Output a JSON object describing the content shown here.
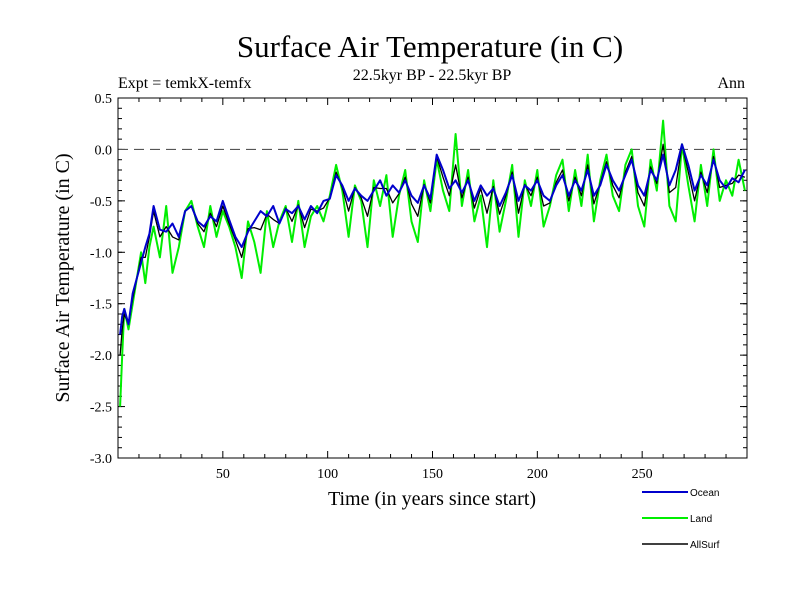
{
  "chart_data": {
    "type": "line",
    "title": "Surface Air Temperature (in C)",
    "subtitle": "22.5kyr BP - 22.5kyr BP",
    "left_label": "Expt = temkX-temfx",
    "right_label": "Ann",
    "xlabel": "Time (in years since start)",
    "ylabel": "Surface Air Temperature (in C)",
    "xlim": [
      0,
      300
    ],
    "ylim": [
      -3.0,
      0.5
    ],
    "x_ticks": [
      50,
      100,
      150,
      200,
      250
    ],
    "y_ticks": [
      -3.0,
      -2.5,
      -2.0,
      -1.5,
      -1.0,
      -0.5,
      0.0,
      0.5
    ],
    "y_tick_labels": [
      "-3.0",
      "-2.5",
      "-2.0",
      "-1.5",
      "-1.0",
      "-0.5",
      "0.0",
      "0.5"
    ],
    "reference_line": 0.0,
    "legend_position": "bottom-right",
    "series": [
      {
        "name": "Ocean",
        "color": "#0000cc",
        "x": [
          1,
          2,
          3,
          5,
          7,
          9,
          11,
          13,
          15,
          17,
          20,
          23,
          26,
          29,
          32,
          35,
          38,
          41,
          44,
          47,
          50,
          53,
          56,
          59,
          62,
          65,
          68,
          71,
          74,
          77,
          80,
          83,
          86,
          89,
          92,
          95,
          98,
          101,
          104,
          107,
          110,
          113,
          116,
          119,
          122,
          125,
          128,
          131,
          134,
          137,
          140,
          143,
          146,
          149,
          152,
          155,
          158,
          161,
          164,
          167,
          170,
          173,
          176,
          179,
          182,
          185,
          188,
          191,
          194,
          197,
          200,
          203,
          206,
          209,
          212,
          215,
          218,
          221,
          224,
          227,
          230,
          233,
          236,
          239,
          242,
          245,
          248,
          251,
          254,
          257,
          260,
          263,
          266,
          269,
          272,
          275,
          278,
          281,
          284,
          287,
          290,
          293,
          296,
          299
        ],
        "values": [
          -1.8,
          -1.62,
          -1.55,
          -1.7,
          -1.4,
          -1.25,
          -1.1,
          -0.95,
          -0.82,
          -0.55,
          -0.78,
          -0.8,
          -0.72,
          -0.85,
          -0.6,
          -0.55,
          -0.7,
          -0.75,
          -0.65,
          -0.7,
          -0.5,
          -0.68,
          -0.85,
          -0.95,
          -0.8,
          -0.7,
          -0.6,
          -0.65,
          -0.55,
          -0.72,
          -0.58,
          -0.62,
          -0.55,
          -0.68,
          -0.55,
          -0.62,
          -0.5,
          -0.48,
          -0.25,
          -0.35,
          -0.5,
          -0.38,
          -0.45,
          -0.5,
          -0.4,
          -0.3,
          -0.45,
          -0.35,
          -0.42,
          -0.3,
          -0.45,
          -0.52,
          -0.35,
          -0.48,
          -0.05,
          -0.2,
          -0.38,
          -0.3,
          -0.42,
          -0.3,
          -0.5,
          -0.35,
          -0.45,
          -0.38,
          -0.55,
          -0.42,
          -0.25,
          -0.5,
          -0.35,
          -0.4,
          -0.3,
          -0.45,
          -0.5,
          -0.35,
          -0.25,
          -0.45,
          -0.3,
          -0.4,
          -0.2,
          -0.45,
          -0.35,
          -0.15,
          -0.3,
          -0.4,
          -0.25,
          -0.1,
          -0.35,
          -0.45,
          -0.2,
          -0.3,
          -0.05,
          -0.35,
          -0.2,
          0.05,
          -0.15,
          -0.4,
          -0.25,
          -0.35,
          -0.1,
          -0.3,
          -0.38,
          -0.28,
          -0.32,
          -0.2
        ]
      },
      {
        "name": "Land",
        "color": "#00ee00",
        "x": [
          1,
          2,
          3,
          5,
          7,
          9,
          11,
          13,
          15,
          17,
          20,
          23,
          26,
          29,
          32,
          35,
          38,
          41,
          44,
          47,
          50,
          53,
          56,
          59,
          62,
          65,
          68,
          71,
          74,
          77,
          80,
          83,
          86,
          89,
          92,
          95,
          98,
          101,
          104,
          107,
          110,
          113,
          116,
          119,
          122,
          125,
          128,
          131,
          134,
          137,
          140,
          143,
          146,
          149,
          152,
          155,
          158,
          161,
          164,
          167,
          170,
          173,
          176,
          179,
          182,
          185,
          188,
          191,
          194,
          197,
          200,
          203,
          206,
          209,
          212,
          215,
          218,
          221,
          224,
          227,
          230,
          233,
          236,
          239,
          242,
          245,
          248,
          251,
          254,
          257,
          260,
          263,
          266,
          269,
          272,
          275,
          278,
          281,
          284,
          287,
          290,
          293,
          296,
          299
        ],
        "values": [
          -2.5,
          -2.0,
          -1.55,
          -1.75,
          -1.5,
          -1.25,
          -1.0,
          -1.3,
          -0.95,
          -0.75,
          -1.05,
          -0.55,
          -1.2,
          -0.95,
          -0.6,
          -0.5,
          -0.75,
          -0.95,
          -0.55,
          -0.85,
          -0.6,
          -0.75,
          -0.95,
          -1.25,
          -0.7,
          -0.9,
          -1.2,
          -0.6,
          -0.95,
          -0.7,
          -0.55,
          -0.9,
          -0.5,
          -0.95,
          -0.65,
          -0.55,
          -0.7,
          -0.45,
          -0.15,
          -0.4,
          -0.85,
          -0.35,
          -0.5,
          -0.95,
          -0.3,
          -0.55,
          -0.25,
          -0.85,
          -0.45,
          -0.2,
          -0.7,
          -0.9,
          -0.3,
          -0.6,
          -0.1,
          -0.4,
          -0.6,
          0.15,
          -0.55,
          -0.2,
          -0.7,
          -0.45,
          -0.95,
          -0.3,
          -0.8,
          -0.5,
          -0.15,
          -0.85,
          -0.3,
          -0.55,
          -0.2,
          -0.75,
          -0.55,
          -0.25,
          -0.1,
          -0.6,
          -0.2,
          -0.55,
          -0.05,
          -0.7,
          -0.3,
          -0.05,
          -0.45,
          -0.6,
          -0.15,
          0.0,
          -0.55,
          -0.75,
          -0.1,
          -0.4,
          0.28,
          -0.55,
          -0.7,
          0.05,
          -0.35,
          -0.7,
          -0.15,
          -0.55,
          0.0,
          -0.5,
          -0.3,
          -0.45,
          -0.1,
          -0.4
        ]
      },
      {
        "name": "AllSurf",
        "color": "#000000",
        "x": [
          1,
          2,
          3,
          5,
          7,
          9,
          11,
          13,
          15,
          17,
          20,
          23,
          26,
          29,
          32,
          35,
          38,
          41,
          44,
          47,
          50,
          53,
          56,
          59,
          62,
          65,
          68,
          71,
          74,
          77,
          80,
          83,
          86,
          89,
          92,
          95,
          98,
          101,
          104,
          107,
          110,
          113,
          116,
          119,
          122,
          125,
          128,
          131,
          134,
          137,
          140,
          143,
          146,
          149,
          152,
          155,
          158,
          161,
          164,
          167,
          170,
          173,
          176,
          179,
          182,
          185,
          188,
          191,
          194,
          197,
          200,
          203,
          206,
          209,
          212,
          215,
          218,
          221,
          224,
          227,
          230,
          233,
          236,
          239,
          242,
          245,
          248,
          251,
          254,
          257,
          260,
          263,
          266,
          269,
          272,
          275,
          278,
          281,
          284,
          287,
          290,
          293,
          296,
          299
        ],
        "values": [
          -2.0,
          -1.75,
          -1.6,
          -1.7,
          -1.45,
          -1.25,
          -1.05,
          -1.05,
          -0.85,
          -0.6,
          -0.85,
          -0.75,
          -0.85,
          -0.88,
          -0.6,
          -0.55,
          -0.72,
          -0.8,
          -0.62,
          -0.75,
          -0.55,
          -0.72,
          -0.88,
          -1.05,
          -0.77,
          -0.76,
          -0.78,
          -0.63,
          -0.68,
          -0.72,
          -0.57,
          -0.7,
          -0.54,
          -0.76,
          -0.58,
          -0.6,
          -0.57,
          -0.47,
          -0.22,
          -0.37,
          -0.6,
          -0.37,
          -0.47,
          -0.65,
          -0.37,
          -0.38,
          -0.38,
          -0.52,
          -0.43,
          -0.27,
          -0.53,
          -0.65,
          -0.34,
          -0.52,
          -0.07,
          -0.27,
          -0.45,
          -0.15,
          -0.47,
          -0.27,
          -0.57,
          -0.38,
          -0.62,
          -0.36,
          -0.63,
          -0.45,
          -0.22,
          -0.62,
          -0.34,
          -0.45,
          -0.27,
          -0.55,
          -0.52,
          -0.32,
          -0.2,
          -0.5,
          -0.27,
          -0.45,
          -0.15,
          -0.53,
          -0.33,
          -0.12,
          -0.35,
          -0.47,
          -0.22,
          -0.07,
          -0.42,
          -0.55,
          -0.17,
          -0.33,
          0.05,
          -0.42,
          -0.37,
          0.05,
          -0.22,
          -0.5,
          -0.22,
          -0.42,
          -0.07,
          -0.37,
          -0.35,
          -0.33,
          -0.25,
          -0.27
        ]
      }
    ]
  }
}
